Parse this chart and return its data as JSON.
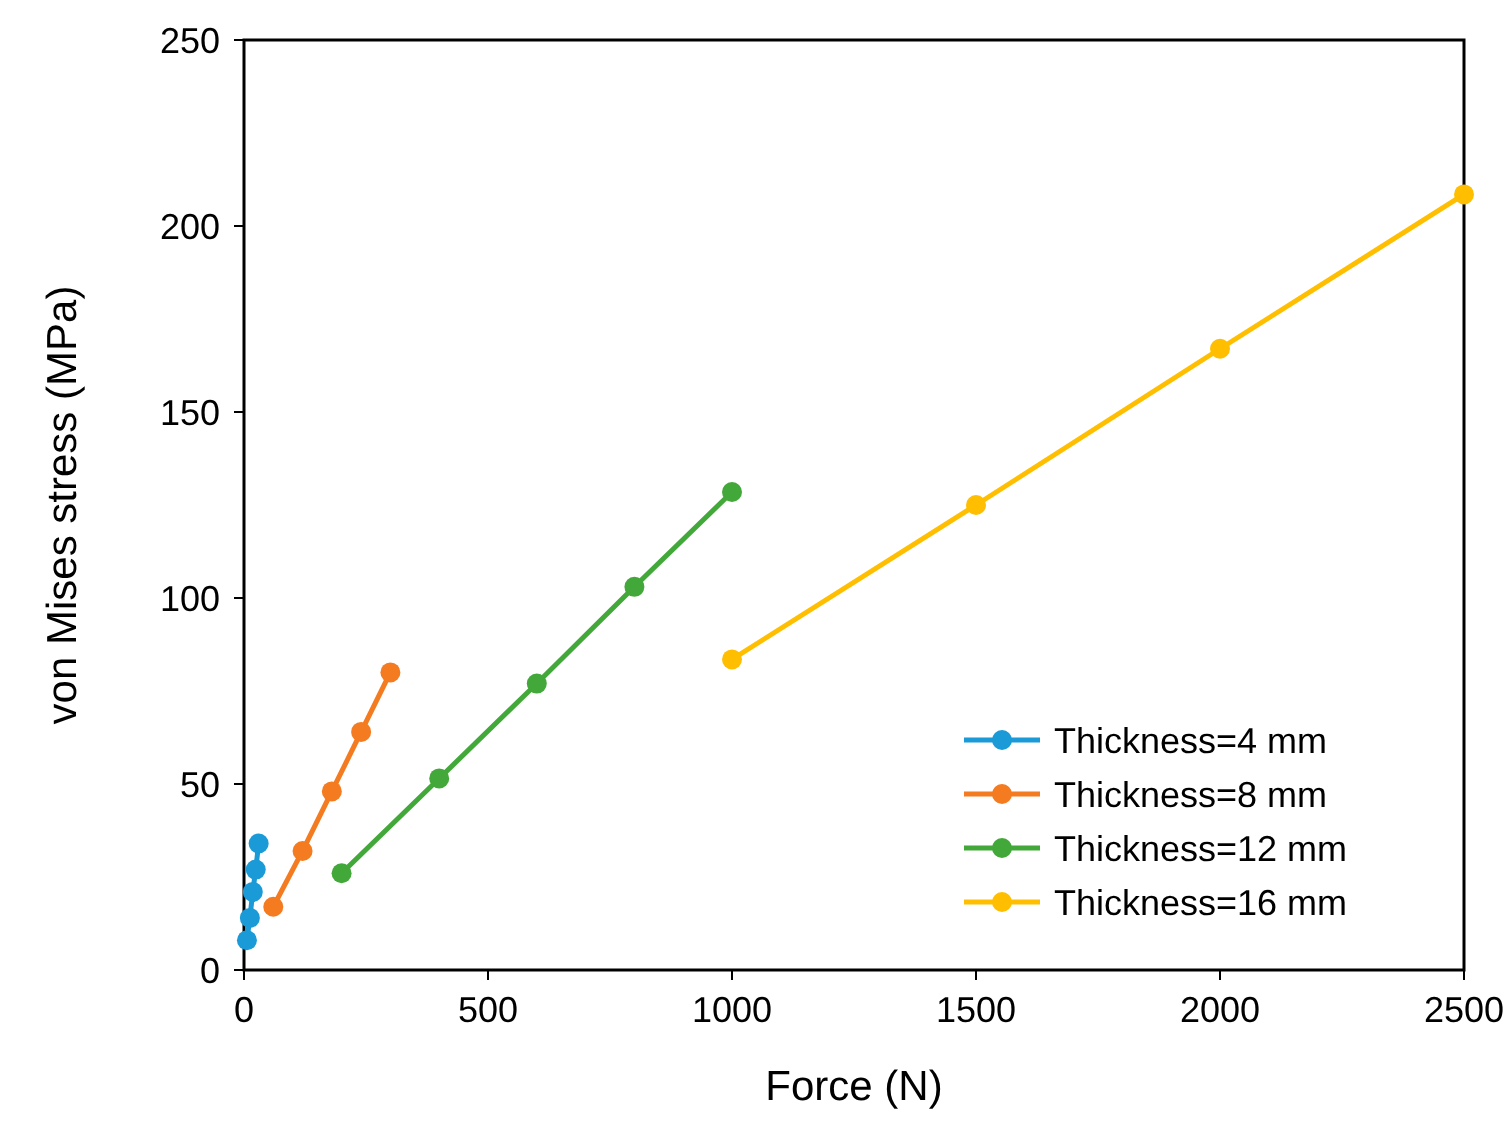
{
  "chart_data": {
    "type": "line",
    "xlabel": "Force (N)",
    "ylabel": "von Mises stress (MPa)",
    "xlim": [
      0,
      2500
    ],
    "xticks": [
      0,
      500,
      1000,
      1500,
      2000,
      2500
    ],
    "ylim": [
      0,
      250
    ],
    "yticks": [
      0,
      50,
      100,
      150,
      200,
      250
    ],
    "grid": false,
    "legend": "bottom right",
    "marker": "circle",
    "line_style": "solid",
    "series": [
      {
        "name": "Thickness=4 mm",
        "color": "#1a9ad6",
        "x": [
          6,
          12,
          18,
          24,
          30
        ],
        "values": [
          8,
          14,
          21,
          27,
          34
        ]
      },
      {
        "name": "Thickness=8 mm",
        "color": "#f47b20",
        "x": [
          60,
          120,
          180,
          240,
          300
        ],
        "values": [
          17,
          32,
          48,
          64,
          80
        ]
      },
      {
        "name": "Thickness=12 mm",
        "color": "#43a83a",
        "x": [
          200,
          400,
          600,
          800,
          1000
        ],
        "values": [
          26,
          51.5,
          77,
          103,
          128.5
        ]
      },
      {
        "name": "Thickness=16 mm",
        "color": "#ffbf00",
        "x": [
          1000,
          1500,
          2000,
          2500
        ],
        "values": [
          83.5,
          125,
          167,
          208.5
        ]
      }
    ]
  }
}
